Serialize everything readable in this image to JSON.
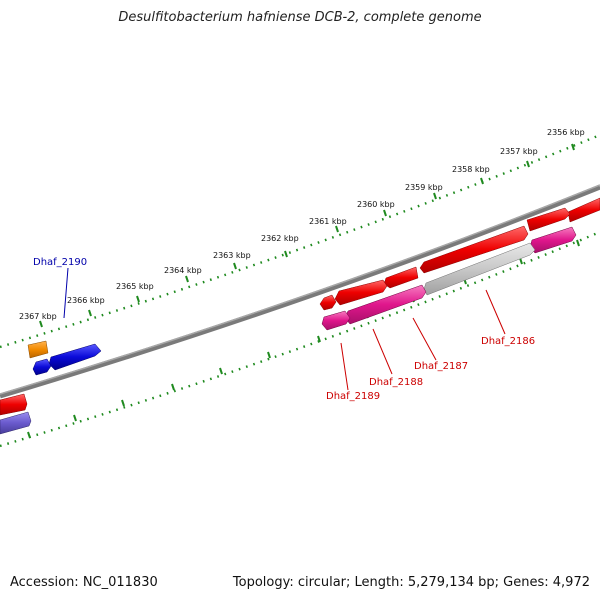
{
  "title": "Desulfitobacterium hafniense DCB-2, complete genome",
  "footer": {
    "accession": "Accession: NC_011830",
    "stats": "Topology: circular; Length: 5,279,134 bp; Genes: 4,972"
  },
  "colors": {
    "backbone": "#7a7a7a",
    "ruler": "#1f8a1f",
    "gene_red": "#ee0000",
    "gene_magenta": "#e0168c",
    "gene_gray": "#c8c8c8",
    "gene_blue": "#0a0ad8",
    "gene_orange": "#f28a00",
    "gene_purple": "#6a5acd",
    "label_red": "#cc0000",
    "label_blue": "#0000aa"
  },
  "tick_labels": [
    "2356 kbp",
    "2357 kbp",
    "2358 kbp",
    "2359 kbp",
    "2360 kbp",
    "2361 kbp",
    "2362 kbp",
    "2363 kbp",
    "2364 kbp",
    "2365 kbp",
    "2366 kbp",
    "2367 kbp"
  ],
  "gene_labels": {
    "dhaf_2190": "Dhaf_2190",
    "dhaf_2189": "Dhaf_2189",
    "dhaf_2188": "Dhaf_2188",
    "dhaf_2187": "Dhaf_2187",
    "dhaf_2186": "Dhaf_2186"
  }
}
